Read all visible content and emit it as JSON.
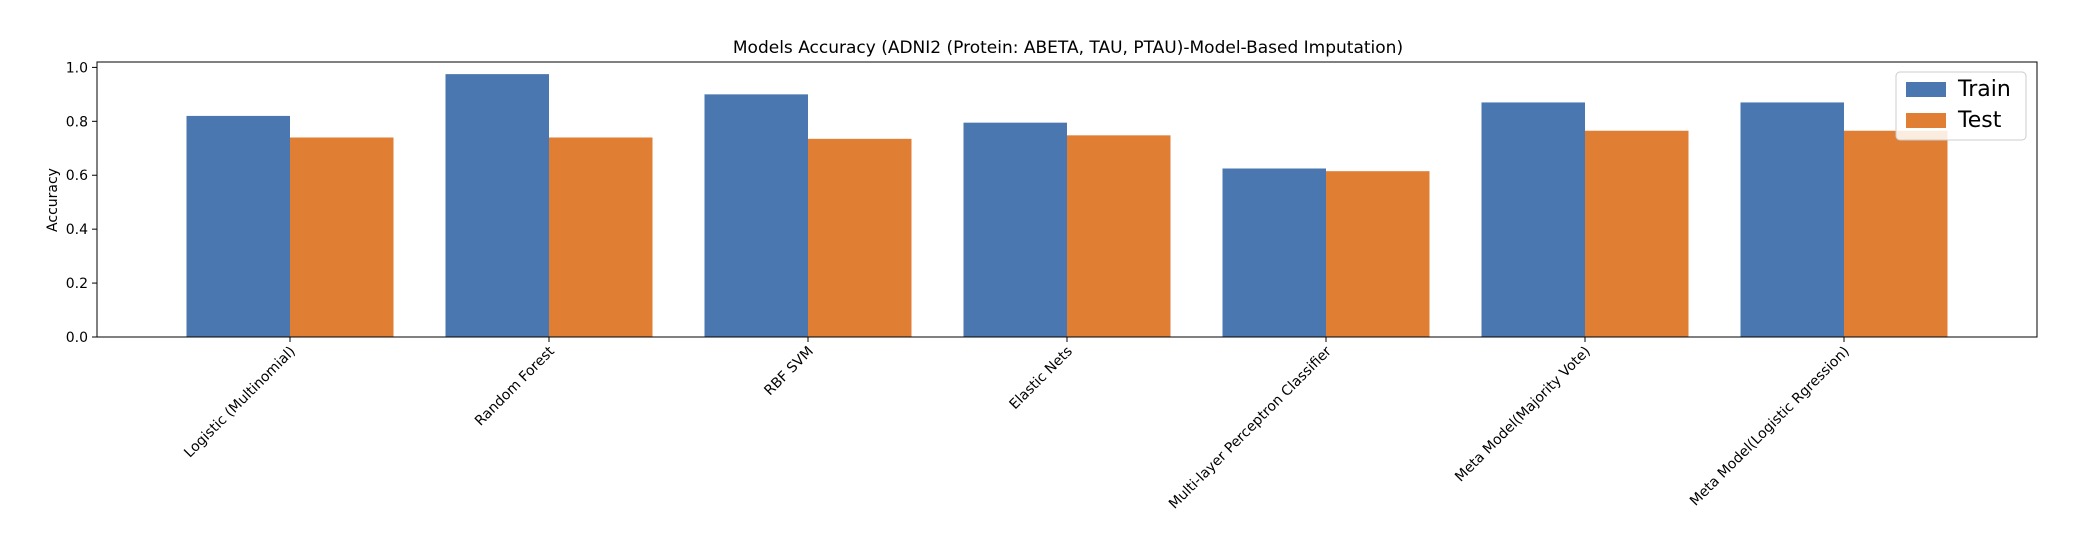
{
  "chart_data": {
    "type": "bar",
    "title": "Models Accuracy (ADNI2 (Protein: ABETA, TAU, PTAU)-Model-Based Imputation)",
    "xlabel": "",
    "ylabel": "Accuracy",
    "ylim": [
      0,
      1.02
    ],
    "yticks": [
      "0.0",
      "0.2",
      "0.4",
      "0.6",
      "0.8",
      "1.0"
    ],
    "grid": false,
    "legend_position": "top-right",
    "categories": [
      "Logistic (Multinomial)",
      "Random Forest",
      "RBF SVM",
      "Elastic Nets",
      "Multi-layer Perceptron Classifier",
      "Meta Model(Majority Vote)",
      "Meta Model(Logistic Rgression)"
    ],
    "series": [
      {
        "name": "Train",
        "color": "#4a77b0",
        "values": [
          0.82,
          0.975,
          0.9,
          0.795,
          0.625,
          0.87,
          0.87
        ]
      },
      {
        "name": "Test",
        "color": "#e07e33",
        "values": [
          0.74,
          0.74,
          0.735,
          0.748,
          0.615,
          0.765,
          0.765
        ]
      }
    ]
  }
}
